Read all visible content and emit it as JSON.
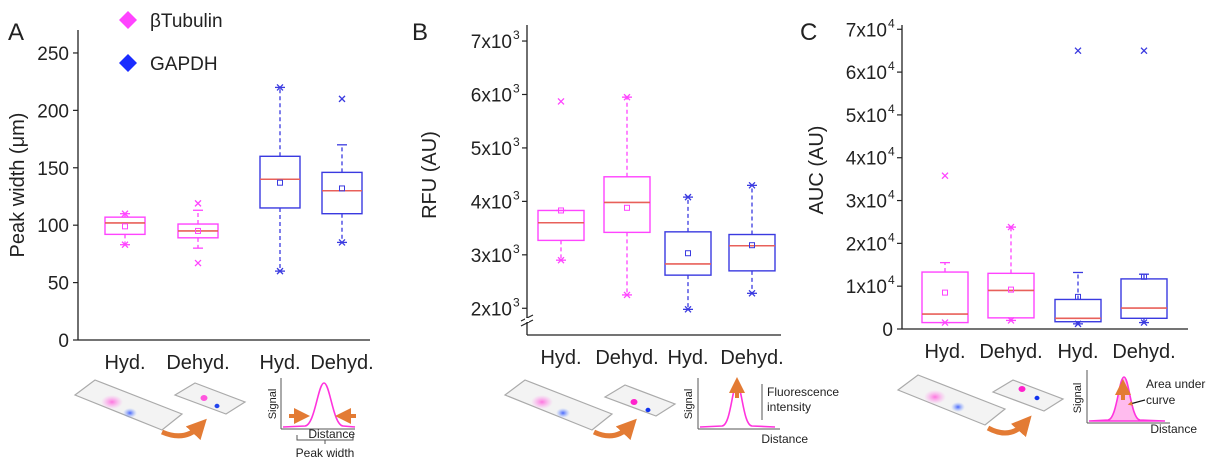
{
  "legend": {
    "items": [
      {
        "label": "βTubulin",
        "color": "#ff44ff"
      },
      {
        "label": "GAPDH",
        "color": "#1a2cff"
      }
    ]
  },
  "panel_letters": [
    "A",
    "B",
    "C"
  ],
  "colors": {
    "pink": "#ff44ff",
    "blue": "#3a3ae0",
    "median": "#e8605a",
    "arrow": "#e37b34"
  },
  "chart_data": [
    {
      "type": "box",
      "panel": "A",
      "ylabel": "Peak width (μm)",
      "ylim": [
        0,
        270
      ],
      "yticks": [
        0,
        50,
        100,
        150,
        200,
        250
      ],
      "ytick_labels": [
        "0",
        "50",
        "100",
        "150",
        "200",
        "250"
      ],
      "categories": [
        "Hyd.",
        "Dehyd.",
        "Hyd.",
        "Dehyd."
      ],
      "boxes": [
        {
          "series": "βTubulin",
          "whisker_low": 83,
          "q1": 92,
          "median": 102,
          "q3": 107,
          "whisker_high": 110,
          "mean": 99,
          "outliers": [
            83,
            110
          ]
        },
        {
          "series": "βTubulin",
          "whisker_low": 80,
          "q1": 89,
          "median": 95,
          "q3": 101,
          "whisker_high": 113,
          "mean": 95,
          "outliers": [
            67,
            119
          ]
        },
        {
          "series": "GAPDH",
          "whisker_low": 60,
          "q1": 115,
          "median": 140,
          "q3": 160,
          "whisker_high": 220,
          "mean": 137,
          "outliers": [
            60,
            220
          ]
        },
        {
          "series": "GAPDH",
          "whisker_low": 85,
          "q1": 110,
          "median": 130,
          "q3": 146,
          "whisker_high": 170,
          "mean": 132,
          "outliers": [
            85,
            210
          ]
        }
      ],
      "diagram": {
        "ylabel": "Signal",
        "xlabel": "Distance",
        "caption": "Peak width"
      }
    },
    {
      "type": "box",
      "panel": "B",
      "ylabel": "RFU (AU)",
      "ylim": [
        1500,
        7300
      ],
      "axis_break": true,
      "yticks": [
        2000,
        3000,
        4000,
        5000,
        6000,
        7000
      ],
      "ytick_labels": [
        "2x10",
        "3x10",
        "4x10",
        "5x10",
        "6x10",
        "7x10"
      ],
      "ytick_exponent": "3",
      "categories": [
        "Hyd.",
        "Dehyd.",
        "Hyd.",
        "Dehyd."
      ],
      "boxes": [
        {
          "series": "βTubulin",
          "whisker_low": 2900,
          "q1": 3270,
          "median": 3600,
          "q3": 3830,
          "whisker_high": 3830,
          "mean": 3830,
          "outliers": [
            2900,
            5870
          ]
        },
        {
          "series": "βTubulin",
          "whisker_low": 2250,
          "q1": 3420,
          "median": 3980,
          "q3": 4460,
          "whisker_high": 5950,
          "mean": 3880,
          "outliers": [
            2250,
            5950
          ]
        },
        {
          "series": "GAPDH",
          "whisker_low": 1980,
          "q1": 2620,
          "median": 2830,
          "q3": 3430,
          "whisker_high": 4080,
          "mean": 3030,
          "outliers": [
            1980,
            4080
          ]
        },
        {
          "series": "GAPDH",
          "whisker_low": 2280,
          "q1": 2700,
          "median": 3170,
          "q3": 3380,
          "whisker_high": 4300,
          "mean": 3180,
          "outliers": [
            2280,
            4300
          ]
        }
      ],
      "diagram": {
        "ylabel": "Signal",
        "xlabel": "Distance",
        "annotation": "Fluorescence intensity",
        "annotation_lines": [
          "Fluorescence",
          "intensity"
        ]
      }
    },
    {
      "type": "box",
      "panel": "C",
      "ylabel": "AUC (AU)",
      "ylim": [
        0,
        71000
      ],
      "yticks": [
        0,
        10000,
        20000,
        30000,
        40000,
        50000,
        60000,
        70000
      ],
      "ytick_labels": [
        "0",
        "1x10",
        "2x10",
        "3x10",
        "4x10",
        "5x10",
        "6x10",
        "7x10"
      ],
      "ytick_exponent": "4",
      "categories": [
        "Hyd.",
        "Dehyd.",
        "Hyd.",
        "Dehyd."
      ],
      "boxes": [
        {
          "series": "βTubulin",
          "whisker_low": 1500,
          "q1": 1500,
          "median": 3500,
          "q3": 13300,
          "whisker_high": 15500,
          "mean": 8500,
          "outliers": [
            1500,
            35800
          ]
        },
        {
          "series": "βTubulin",
          "whisker_low": 2000,
          "q1": 2600,
          "median": 9000,
          "q3": 13000,
          "whisker_high": 23800,
          "mean": 9200,
          "outliers": [
            2000,
            23800
          ]
        },
        {
          "series": "GAPDH",
          "whisker_low": 1200,
          "q1": 1700,
          "median": 2500,
          "q3": 6900,
          "whisker_high": 13200,
          "mean": 7500,
          "outliers": [
            1200,
            65000
          ]
        },
        {
          "series": "GAPDH",
          "whisker_low": 1500,
          "q1": 2500,
          "median": 4900,
          "q3": 11700,
          "whisker_high": 12800,
          "mean": 12200,
          "outliers": [
            1500,
            65000
          ]
        }
      ],
      "diagram": {
        "ylabel": "Signal",
        "xlabel": "Distance",
        "annotation": "Area under curve",
        "annotation_lines": [
          "Area under",
          "curve"
        ]
      }
    }
  ]
}
